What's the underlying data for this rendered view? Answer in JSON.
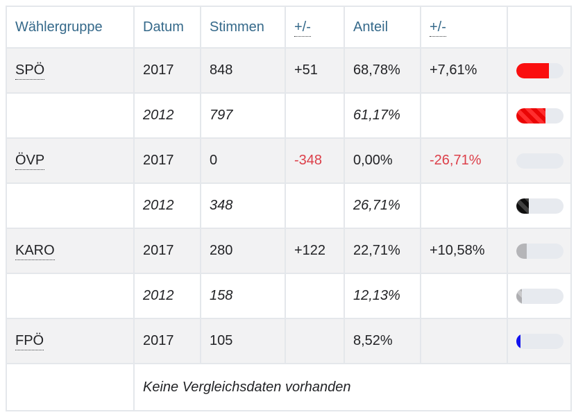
{
  "colors": {
    "header_text": "#35698a",
    "body_text": "#222326",
    "negative_text": "#dc3f49",
    "row_shade": "#f2f2f3",
    "cell_border": "#e4e7eb",
    "bar_track": "#e7eaef",
    "spo_red": "#fa0f0f",
    "ovp_black": "#151515",
    "karo_gray": "#b5b5b8",
    "fpo_blue": "#1212ef"
  },
  "headers": {
    "group": "Wählergruppe",
    "date": "Datum",
    "votes": "Stimmen",
    "votes_diff": "+/-",
    "share": "Anteil",
    "share_diff": "+/-"
  },
  "rows": [
    {
      "group": "SPÖ",
      "year": "2017",
      "votes": "848",
      "votes_diff": "+51",
      "share": "68,78%",
      "share_diff": "+7,61%",
      "bar": {
        "pct": 68.78,
        "fill": "#fa0f0f"
      }
    },
    {
      "group": "",
      "year": "2012",
      "votes": "797",
      "votes_diff": "",
      "share": "61,17%",
      "share_diff": "",
      "bar": {
        "pct": 61.17,
        "fill": "repeating-linear-gradient(45deg, #ff2e2e 0 6px, #ea0505 6px 12px)"
      }
    },
    {
      "group": "ÖVP",
      "year": "2017",
      "votes": "0",
      "votes_diff": "-348",
      "share": "0,00%",
      "share_diff": "-26,71%",
      "bar": {
        "pct": 0,
        "fill": "transparent"
      }
    },
    {
      "group": "",
      "year": "2012",
      "votes": "348",
      "votes_diff": "",
      "share": "26,71%",
      "share_diff": "",
      "bar": {
        "pct": 26.71,
        "fill": "repeating-linear-gradient(45deg, #3f3f3f 0 6px, #0e0e0e 6px 12px)"
      }
    },
    {
      "group": "KARO",
      "year": "2017",
      "votes": "280",
      "votes_diff": "+122",
      "share": "22,71%",
      "share_diff": "+10,58%",
      "bar": {
        "pct": 22.71,
        "fill": "#b5b5b8"
      }
    },
    {
      "group": "",
      "year": "2012",
      "votes": "158",
      "votes_diff": "",
      "share": "12,13%",
      "share_diff": "",
      "bar": {
        "pct": 12.13,
        "fill": "repeating-linear-gradient(45deg, #c9c9cb 0 6px, #aeaeb1 6px 12px)"
      }
    },
    {
      "group": "FPÖ",
      "year": "2017",
      "votes": "105",
      "votes_diff": "",
      "share": "8,52%",
      "share_diff": "",
      "bar": {
        "pct": 8.52,
        "fill": "#1212ef"
      }
    }
  ],
  "footer": {
    "note": "Keine Vergleichsdaten vorhanden"
  }
}
